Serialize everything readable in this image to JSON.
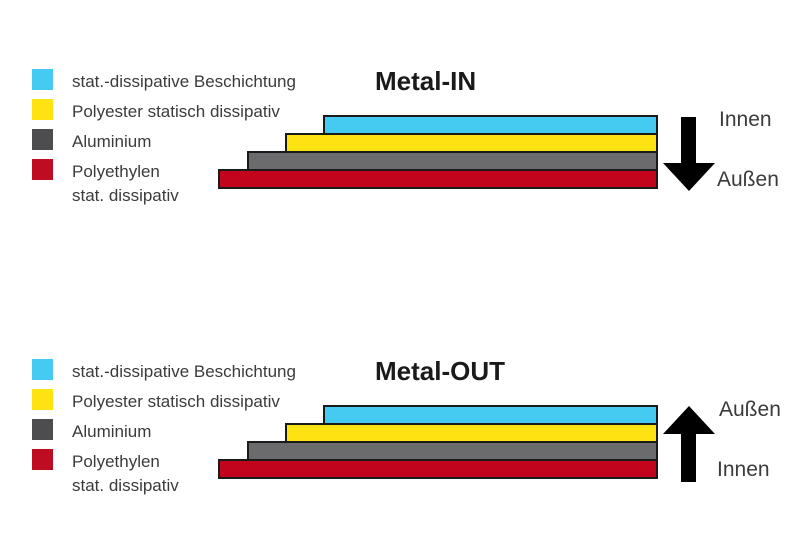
{
  "colors": {
    "background": "#FFFFFF",
    "cyan": "#45CBF2",
    "yellow": "#FFE212",
    "gray-swatch": "#4D4D4F",
    "gray-layer": "#6B6B6D",
    "red-swatch": "#BE0C22",
    "red-layer": "#C2041D",
    "outline": "#1A1A1A",
    "title": "#1A1A1A",
    "text": "#3B3B3B",
    "arrow": "#000000"
  },
  "legend": {
    "items": [
      {
        "swatch_color": "cyan",
        "label": "stat.-dissipative Beschichtung"
      },
      {
        "swatch_color": "yellow",
        "label": "Polyester statisch dissipativ"
      },
      {
        "swatch_color": "gray",
        "label": "Aluminium"
      },
      {
        "swatch_color": "red",
        "label": "Polyethylen",
        "label_line2": "stat. dissipativ"
      }
    ]
  },
  "diagrams": [
    {
      "title": "Metal-IN",
      "arrow_direction": "down",
      "arrow_top_label": "Innen",
      "arrow_bottom_label": "Außen",
      "layers_top_to_bottom": [
        "stat.-dissipative Beschichtung",
        "Polyester statisch dissipativ",
        "Aluminium",
        "Polyethylen stat. dissipativ"
      ]
    },
    {
      "title": "Metal-OUT",
      "arrow_direction": "up",
      "arrow_top_label": "Außen",
      "arrow_bottom_label": "Innen",
      "layers_top_to_bottom": [
        "stat.-dissipative Beschichtung",
        "Polyester statisch dissipativ",
        "Aluminium",
        "Polyethylen stat. dissipativ"
      ]
    }
  ]
}
